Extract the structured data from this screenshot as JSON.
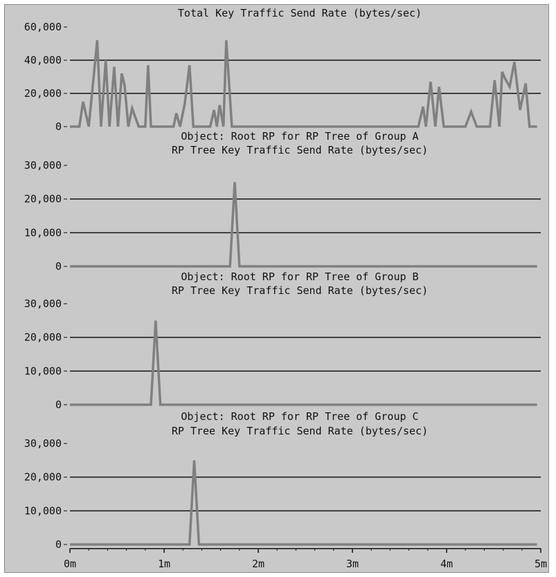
{
  "colors": {
    "background": "#c9c9c9",
    "line": "#808080",
    "grid": "#111111",
    "text": "#111111"
  },
  "x_tick_labels": [
    "0m",
    "1m",
    "2m",
    "3m",
    "4m",
    "5m"
  ],
  "chart_data": [
    {
      "type": "line",
      "title_lines": [
        "Total Key Traffic Send Rate (bytes/sec)"
      ],
      "ylim": [
        0,
        60000
      ],
      "yticks": [
        0,
        20000,
        40000,
        60000
      ],
      "ytick_labels": [
        "0",
        "20,000",
        "40,000",
        "60,000"
      ],
      "xlim": [
        0,
        5
      ],
      "grid": true,
      "series": [
        {
          "x": [
            0,
            0.1,
            0.14,
            0.2,
            0.29,
            0.33,
            0.38,
            0.42,
            0.47,
            0.51,
            0.55,
            0.58,
            0.62,
            0.66,
            0.73,
            0.8,
            0.83,
            0.86,
            0.92,
            0.98,
            1.1,
            1.13,
            1.17,
            1.22,
            1.27,
            1.31,
            1.35,
            1.49,
            1.53,
            1.56,
            1.59,
            1.63,
            1.66,
            1.72,
            1.76,
            3.7,
            3.75,
            3.78,
            3.83,
            3.88,
            3.92,
            3.97,
            4.2,
            4.26,
            4.32,
            4.46,
            4.51,
            4.56,
            4.59,
            4.62,
            4.67,
            4.72,
            4.78,
            4.84,
            4.88,
            4.92,
            4.96
          ],
          "y": [
            0,
            0,
            15000,
            0,
            52000,
            0,
            40000,
            0,
            36000,
            0,
            32000,
            25000,
            0,
            11000,
            0,
            0,
            37000,
            0,
            0,
            0,
            0,
            8000,
            0,
            14000,
            37000,
            0,
            0,
            0,
            10000,
            0,
            13000,
            0,
            52000,
            0,
            0,
            0,
            12000,
            0,
            27000,
            0,
            24000,
            0,
            0,
            9000,
            0,
            0,
            28000,
            0,
            33000,
            29000,
            24000,
            39000,
            10000,
            26000,
            0,
            0,
            0
          ]
        }
      ]
    },
    {
      "type": "line",
      "title_lines": [
        "Object: Root RP for RP Tree of Group A",
        "RP Tree Key Traffic Send Rate (bytes/sec)"
      ],
      "ylim": [
        0,
        30000
      ],
      "yticks": [
        0,
        10000,
        20000,
        30000
      ],
      "ytick_labels": [
        "0",
        "10,000",
        "20,000",
        "30,000"
      ],
      "xlim": [
        0,
        5
      ],
      "grid": true,
      "series": [
        {
          "x": [
            0,
            1.7,
            1.75,
            1.8,
            4.96
          ],
          "y": [
            0,
            0,
            25000,
            0,
            0
          ]
        }
      ]
    },
    {
      "type": "line",
      "title_lines": [
        "Object: Root RP for RP Tree of Group B",
        "RP Tree Key Traffic Send Rate (bytes/sec)"
      ],
      "ylim": [
        0,
        30000
      ],
      "yticks": [
        0,
        10000,
        20000,
        30000
      ],
      "ytick_labels": [
        "0",
        "10,000",
        "20,000",
        "30,000"
      ],
      "xlim": [
        0,
        5
      ],
      "grid": true,
      "series": [
        {
          "x": [
            0,
            0.86,
            0.91,
            0.96,
            4.96
          ],
          "y": [
            0,
            0,
            25000,
            0,
            0
          ]
        }
      ]
    },
    {
      "type": "line",
      "title_lines": [
        "Object: Root RP for RP Tree of Group C",
        "RP Tree Key Traffic Send Rate (bytes/sec)"
      ],
      "ylim": [
        0,
        30000
      ],
      "yticks": [
        0,
        10000,
        20000,
        30000
      ],
      "ytick_labels": [
        "0",
        "10,000",
        "20,000",
        "30,000"
      ],
      "xlim": [
        0,
        5
      ],
      "grid": true,
      "series": [
        {
          "x": [
            0,
            1.27,
            1.32,
            1.37,
            4.96
          ],
          "y": [
            0,
            0,
            25000,
            0,
            0
          ]
        }
      ]
    }
  ]
}
